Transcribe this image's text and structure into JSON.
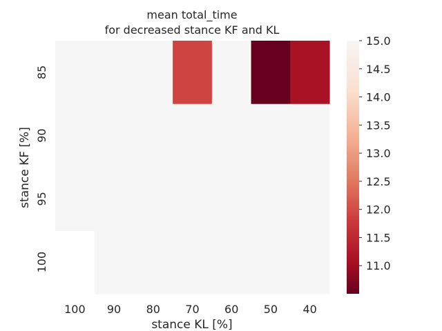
{
  "chart_data": {
    "type": "heatmap",
    "title": "mean total_time\nfor decreased stance KF and KL",
    "xlabel": "stance KL [%]",
    "ylabel": "stance KF [%]",
    "x_categories": [
      "100",
      "90",
      "80",
      "70",
      "60",
      "50",
      "40"
    ],
    "y_categories": [
      "85",
      "90",
      "95",
      "100"
    ],
    "values": [
      [
        15.0,
        15.0,
        15.0,
        11.9,
        15.0,
        10.5,
        11.1
      ],
      [
        15.0,
        15.0,
        15.0,
        15.0,
        15.0,
        15.0,
        15.0
      ],
      [
        15.0,
        15.0,
        15.0,
        15.0,
        15.0,
        15.0,
        15.0
      ],
      [
        null,
        15.0,
        15.0,
        15.0,
        15.0,
        15.0,
        15.0
      ]
    ],
    "colorbar": {
      "colormap": "RdBu",
      "range": [
        10.5,
        15.0
      ],
      "ticks": [
        "11.0",
        "11.5",
        "12.0",
        "12.5",
        "13.0",
        "13.5",
        "14.0",
        "14.5",
        "15.0"
      ]
    },
    "grid": false
  }
}
